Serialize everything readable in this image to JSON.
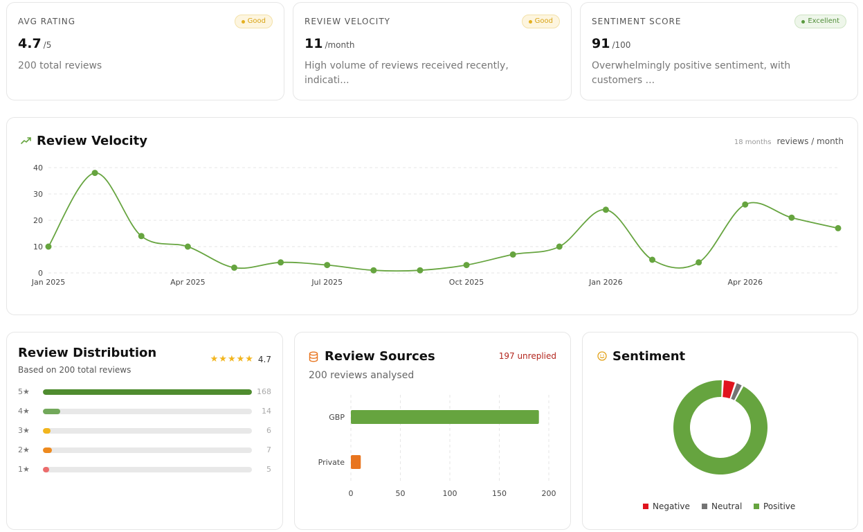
{
  "kpis": [
    {
      "label": "AVG RATING",
      "badge": "Good",
      "badge_type": "good",
      "value": "4.7",
      "unit": "/5",
      "desc": "200 total reviews"
    },
    {
      "label": "REVIEW VELOCITY",
      "badge": "Good",
      "badge_type": "good",
      "value": "11",
      "unit": "/month",
      "desc": "High volume of reviews received recently, indicati..."
    },
    {
      "label": "SENTIMENT SCORE",
      "badge": "Excellent",
      "badge_type": "exc",
      "value": "91",
      "unit": "/100",
      "desc": "Overwhelmingly positive sentiment, with customers ..."
    }
  ],
  "velocity": {
    "title": "Review Velocity",
    "meta_small": "18 months",
    "meta_unit": "reviews / month"
  },
  "distribution": {
    "title": "Review Distribution",
    "subtitle": "Based on 200 total reviews",
    "rating": "4.7",
    "star_char": "★",
    "rows": [
      {
        "label": "5★",
        "count": "168",
        "value": 168,
        "color": "#4f8c2f"
      },
      {
        "label": "4★",
        "count": "14",
        "value": 14,
        "color": "#72a85a"
      },
      {
        "label": "3★",
        "count": "6",
        "value": 6,
        "color": "#f2b51d"
      },
      {
        "label": "2★",
        "count": "7",
        "value": 7,
        "color": "#ee8a1e"
      },
      {
        "label": "1★",
        "count": "5",
        "value": 5,
        "color": "#ec6c6c"
      }
    ],
    "max": 168
  },
  "sources": {
    "title": "Review Sources",
    "unreplied": "197 unreplied",
    "subtitle": "200 reviews analysed"
  },
  "sentiment": {
    "title": "Sentiment"
  },
  "colors": {
    "green": "#66a43f",
    "orange": "#e8741e",
    "red": "#e0141e",
    "gray": "#747474",
    "gold": "#f2b51d"
  },
  "chart_data": [
    {
      "type": "line",
      "title": "Review Velocity",
      "x": [
        "Jan 2025",
        "Feb 2025",
        "Mar 2025",
        "Apr 2025",
        "May 2025",
        "Jun 2025",
        "Jul 2025",
        "Aug 2025",
        "Sep 2025",
        "Oct 2025",
        "Nov 2025",
        "Dec 2025",
        "Jan 2026",
        "Feb 2026",
        "Mar 2026",
        "Apr 2026",
        "May 2026",
        "Jun 2026"
      ],
      "x_tick_labels": [
        "Jan 2025",
        "Apr 2025",
        "Jul 2025",
        "Oct 2025",
        "Jan 2026",
        "Apr 2026"
      ],
      "series": [
        {
          "values": [
            10,
            38,
            14,
            10,
            2,
            4,
            3,
            1,
            1,
            3,
            7,
            10,
            24,
            5,
            4,
            26,
            21,
            17
          ]
        }
      ],
      "ylim": [
        0,
        40
      ],
      "yticks": [
        0,
        10,
        20,
        30,
        40
      ],
      "grid": true
    },
    {
      "type": "bar",
      "orientation": "horizontal",
      "title": "Review Sources",
      "categories": [
        "GBP",
        "Private"
      ],
      "values": [
        190,
        10
      ],
      "colors": [
        "#66a43f",
        "#e8741e"
      ],
      "xlim": [
        0,
        200
      ],
      "xticks": [
        0,
        50,
        100,
        150,
        200
      ],
      "grid": true
    },
    {
      "type": "pie",
      "donut": true,
      "title": "Sentiment",
      "categories": [
        "Negative",
        "Neutral",
        "Positive"
      ],
      "values": [
        9,
        5,
        186
      ],
      "colors": [
        "#e0141e",
        "#747474",
        "#66a43f"
      ],
      "legend": "bottom"
    }
  ]
}
